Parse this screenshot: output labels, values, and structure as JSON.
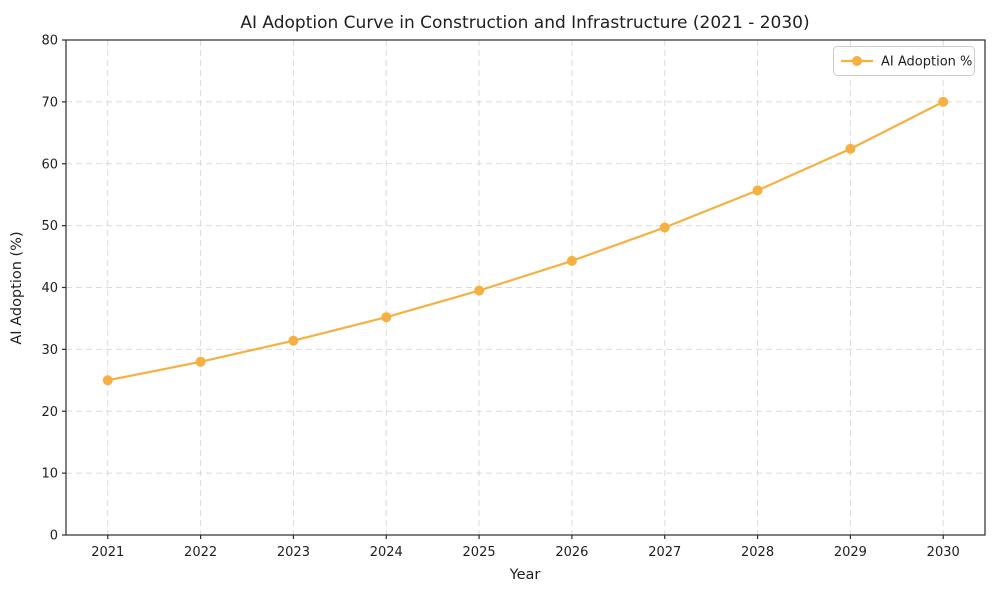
{
  "figure": {
    "background": "#ffffff"
  },
  "chart_data": {
    "type": "line",
    "title": "AI Adoption Curve in Construction and Infrastructure (2021 - 2030)",
    "xlabel": "Year",
    "ylabel": "AI Adoption (%)",
    "x": [
      2021,
      2022,
      2023,
      2024,
      2025,
      2026,
      2027,
      2028,
      2029,
      2030
    ],
    "series": [
      {
        "name": "AI Adoption %",
        "values": [
          25.0,
          28.0,
          31.4,
          35.2,
          39.5,
          44.3,
          49.7,
          55.7,
          62.4,
          70.0
        ],
        "color": "#F5B041",
        "marker": "circle",
        "line_width": 2.2,
        "marker_radius": 5
      }
    ],
    "ylim": [
      0,
      80
    ],
    "yticks": [
      0,
      10,
      20,
      30,
      40,
      50,
      60,
      70,
      80
    ],
    "grid": true,
    "grid_style": "dashed",
    "legend": {
      "position": "upper-right",
      "entries": [
        "AI Adoption %"
      ]
    }
  },
  "colors": {
    "accent": "#F5B041",
    "grid": "#d5d5d5",
    "spine": "#2b2b2b",
    "text": "#1f1f1f",
    "legend_border": "#cccccc",
    "background": "#ffffff"
  }
}
